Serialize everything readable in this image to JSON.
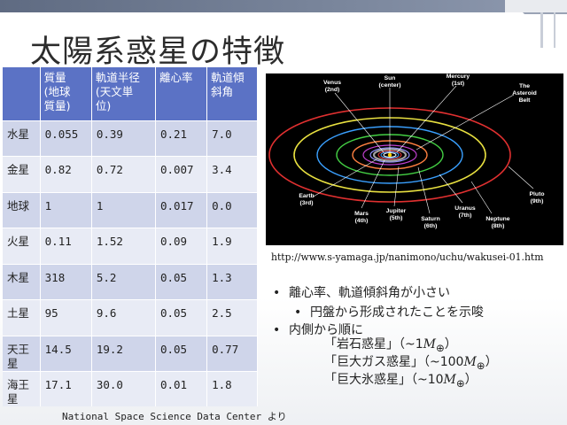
{
  "slide": {
    "title": "太陽系惑星の特徴",
    "source_note": "National Space Science Data Center より",
    "url": "http://www.s-yamaga.jp/nanimono/uchu/wakusei-01.htm"
  },
  "table": {
    "headers": [
      "",
      "質量\n(地球\n質量)",
      "軌道半径\n(天文単\n位)",
      "離心率",
      "軌道傾\n斜角"
    ],
    "rows": [
      [
        "水星",
        "0.055",
        "0.39",
        "0.21",
        "7.0"
      ],
      [
        "金星",
        "0.82",
        "0.72",
        "0.007",
        "3.4"
      ],
      [
        "地球",
        "1",
        "1",
        "0.017",
        "0.0"
      ],
      [
        "火星",
        "0.11",
        "1.52",
        "0.09",
        "1.9"
      ],
      [
        "木星",
        "318",
        "5.2",
        "0.05",
        "1.3"
      ],
      [
        "土星",
        "95",
        "9.6",
        "0.05",
        "2.5"
      ],
      [
        "天王\n星",
        "14.5",
        "19.2",
        "0.05",
        "0.77"
      ],
      [
        "海王\n星",
        "17.1",
        "30.0",
        "0.01",
        "1.8"
      ]
    ]
  },
  "diagram": {
    "labels": {
      "venus": "Venus\n(2nd)",
      "sun": "Sun\n(center)",
      "mercury": "Mercury\n(1st)",
      "asteroid": "The\nAsteroid\nBelt",
      "earth": "Earth\n(3rd)",
      "mars": "Mars\n(4th)",
      "jupiter": "Jupiter\n(5th)",
      "saturn": "Saturn\n(6th)",
      "uranus": "Uranus\n(7th)",
      "neptune": "Neptune\n(8th)",
      "pluto": "Pluto\n(9th)"
    }
  },
  "bullets": {
    "b1": "離心率、軌道傾斜角が小さい",
    "b2": "円盤から形成されたことを示唆",
    "b3": "内側から順に",
    "sub1_pre": "「岩石惑星」（~1",
    "sub2_pre": "「巨大ガス惑星」（~100",
    "sub3_pre": "「巨大氷惑星」（~10",
    "mass_symbol": "M",
    "earth_sub": "⊕",
    "close": "）",
    "bullet_char": "•",
    "sub_bullet_char": "•"
  },
  "colors": {
    "header_blue": "#5b72c5",
    "row_odd": "#cfd5ea",
    "row_even": "#e8ebf5"
  }
}
